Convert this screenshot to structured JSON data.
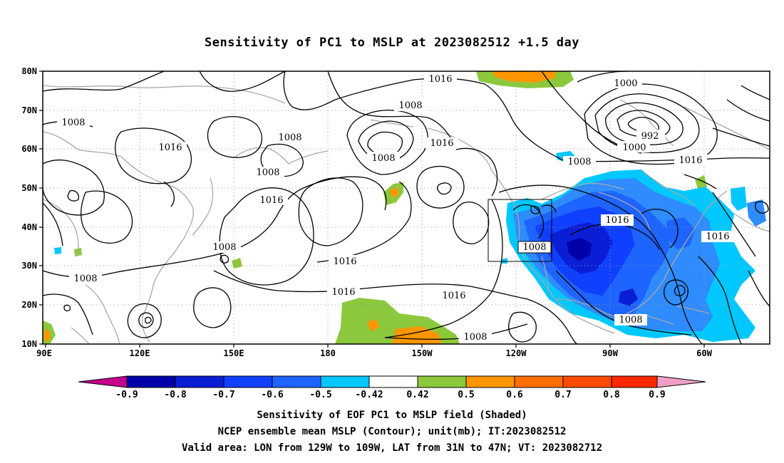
{
  "title": "Sensitivity of PC1 to MSLP at 2023082512 +1.5 day",
  "axes": {
    "lon_ticks": [
      "90E",
      "120E",
      "150E",
      "180",
      "150W",
      "120W",
      "90W",
      "60W"
    ],
    "lat_ticks": [
      "80N",
      "70N",
      "60N",
      "50N",
      "40N",
      "30N",
      "20N",
      "10N"
    ]
  },
  "contour_labels": {
    "c1": "1016",
    "c2": "1000",
    "c3": "1008",
    "c4": "992",
    "c5": "1000",
    "c6": "1008",
    "c7": "1008",
    "c8": "1016",
    "c9": "1008",
    "c10": "1008",
    "c11": "1016",
    "c12": "1016",
    "c13": "1016",
    "c14": "1008",
    "c15": "1008",
    "c16": "1016",
    "c17": "1016",
    "c18": "1016",
    "c19": "1008",
    "c20": "1016",
    "c21": "1008",
    "c22": "1008"
  },
  "colorbar": {
    "labels": [
      "-0.9",
      "-0.8",
      "-0.7",
      "-0.6",
      "-0.5",
      "-0.42",
      "0.42",
      "0.5",
      "0.6",
      "0.7",
      "0.8",
      "0.9"
    ],
    "colors": {
      "m_low": "#c4008c",
      "m09": "#0000a8",
      "m08": "#0a1ed6",
      "m07": "#1040ff",
      "m06": "#1e64ff",
      "m05": "#2e8cff",
      "m042": "#00c8ff",
      "mid": "#ffffff",
      "p042": "#8cc83c",
      "p05": "#ff9600",
      "p06": "#ff6e00",
      "p07": "#ff4b00",
      "p08": "#ff2800",
      "p09": "#ff0000",
      "p_high": "#f0a0c8"
    }
  },
  "captions": {
    "line1": "Sensitivity of EOF PC1 to MSLP field (Shaded)",
    "line2": "NCEP ensemble mean MSLP (Contour); unit(mb); IT:2023082512",
    "line3": "Valid area: LON from 129W to 109W, LAT from 31N to 47N; VT: 2023082712"
  },
  "map_data": {
    "lon_range": [
      90,
      310
    ],
    "lat_range": [
      10,
      80
    ],
    "valid_area": {
      "lon": [
        -129,
        -109
      ],
      "lat": [
        31,
        47
      ]
    }
  }
}
